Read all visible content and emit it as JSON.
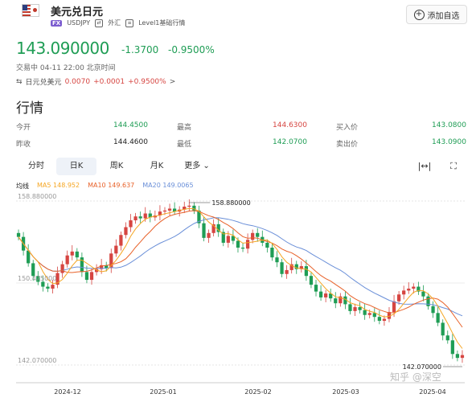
{
  "header": {
    "title": "美元兑日元",
    "fx_badge": "FX",
    "symbol": "USDJPY",
    "category": "外汇",
    "level": "Level1基础行情",
    "add_button": "添加自选"
  },
  "quote": {
    "price": "143.090000",
    "change": "-1.3700",
    "change_pct": "-0.9500%",
    "status": "交易中 04-11 22:00 北京时间",
    "inverse_label": "日元兑美元",
    "inverse_price": "0.0070",
    "inverse_change": "+0.0001",
    "inverse_pct": "+0.9500%"
  },
  "market": {
    "heading": "行情",
    "rows": [
      [
        {
          "label": "今开",
          "value": "144.4500",
          "color": "green"
        },
        {
          "label": "最高",
          "value": "144.6300",
          "color": "red"
        },
        {
          "label": "买入价",
          "value": "143.0800",
          "color": "green"
        }
      ],
      [
        {
          "label": "昨收",
          "value": "144.4600",
          "color": "neutral"
        },
        {
          "label": "最低",
          "value": "142.0700",
          "color": "green"
        },
        {
          "label": "卖出价",
          "value": "143.0900",
          "color": "green"
        }
      ]
    ]
  },
  "tabs": [
    "分时",
    "日K",
    "周K",
    "月K",
    "更多"
  ],
  "active_tab": 1,
  "legend": {
    "label": "均线",
    "ma5": "MA5 148.952",
    "ma10": "MA10 149.637",
    "ma20": "MA20 149.0065"
  },
  "colors": {
    "up": "#d64541",
    "down": "#1f9d55",
    "ma5": "#f5a623",
    "ma10": "#e8622a",
    "ma20": "#6a8fd8"
  },
  "chart_data": {
    "type": "candlestick",
    "y_ticks": [
      "158.880000",
      "150.475000",
      "142.070000"
    ],
    "x_ticks": [
      "2024-12",
      "2025-01",
      "2025-02",
      "2025-03",
      "2025-04"
    ],
    "max_label": "158.880000",
    "min_label": "142.070000",
    "ylim": [
      142.07,
      158.88
    ],
    "approx_closes": [
      155.2,
      153.8,
      152.5,
      151.2,
      150.6,
      150.1,
      149.9,
      150.3,
      151.5,
      152.4,
      153.3,
      153.7,
      153.1,
      151.6,
      150.8,
      151.6,
      151.9,
      152.3,
      152.0,
      153.5,
      154.3,
      155.4,
      156.2,
      156.9,
      157.3,
      157.1,
      157.6,
      157.2,
      157.4,
      157.8,
      157.9,
      158.1,
      157.8,
      158.0,
      158.3,
      158.4,
      157.9,
      156.6,
      155.1,
      155.6,
      156.5,
      155.7,
      154.6,
      155.3,
      154.8,
      154.1,
      154.0,
      154.9,
      155.6,
      155.2,
      154.6,
      154.1,
      153.1,
      152.6,
      151.4,
      151.8,
      152.4,
      151.9,
      152.2,
      151.2,
      150.3,
      149.6,
      149.0,
      149.4,
      148.9,
      148.4,
      149.1,
      148.3,
      147.6,
      148.0,
      147.7,
      147.2,
      147.4,
      147.0,
      146.6,
      146.8,
      147.5,
      148.6,
      149.3,
      149.7,
      149.9,
      150.1,
      149.6,
      149.1,
      148.1,
      147.4,
      146.4,
      145.1,
      144.6,
      143.2,
      142.8,
      143.09
    ]
  },
  "watermark": "知乎 @深空"
}
